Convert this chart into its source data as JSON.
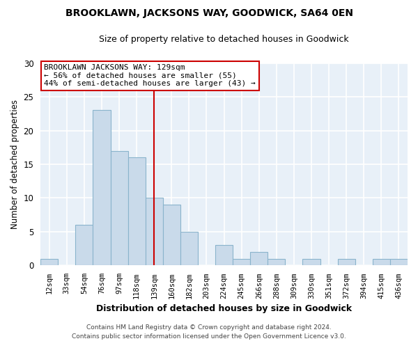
{
  "title": "BROOKLAWN, JACKSONS WAY, GOODWICK, SA64 0EN",
  "subtitle": "Size of property relative to detached houses in Goodwick",
  "xlabel": "Distribution of detached houses by size in Goodwick",
  "ylabel": "Number of detached properties",
  "footnote1": "Contains HM Land Registry data © Crown copyright and database right 2024.",
  "footnote2": "Contains public sector information licensed under the Open Government Licence v3.0.",
  "bar_labels": [
    "12sqm",
    "33sqm",
    "54sqm",
    "76sqm",
    "97sqm",
    "118sqm",
    "139sqm",
    "160sqm",
    "182sqm",
    "203sqm",
    "224sqm",
    "245sqm",
    "266sqm",
    "288sqm",
    "309sqm",
    "330sqm",
    "351sqm",
    "372sqm",
    "394sqm",
    "415sqm",
    "436sqm"
  ],
  "bar_values": [
    1,
    0,
    6,
    23,
    17,
    16,
    10,
    9,
    5,
    0,
    3,
    1,
    2,
    1,
    0,
    1,
    0,
    1,
    0,
    1,
    1
  ],
  "bar_color": "#c9daea",
  "bar_edge_color": "#8ab4cc",
  "ylim": [
    0,
    30
  ],
  "yticks": [
    0,
    5,
    10,
    15,
    20,
    25,
    30
  ],
  "vline_x": 6.0,
  "vline_color": "#cc0000",
  "annotation_title": "BROOKLAWN JACKSONS WAY: 129sqm",
  "annotation_line1": "← 56% of detached houses are smaller (55)",
  "annotation_line2": "44% of semi-detached houses are larger (43) →",
  "annotation_box_color": "#ffffff",
  "annotation_box_edge": "#cc0000",
  "fig_bg_color": "#ffffff",
  "plot_bg_color": "#e8f0f8",
  "grid_color": "#ffffff",
  "title_fontsize": 10,
  "subtitle_fontsize": 9
}
